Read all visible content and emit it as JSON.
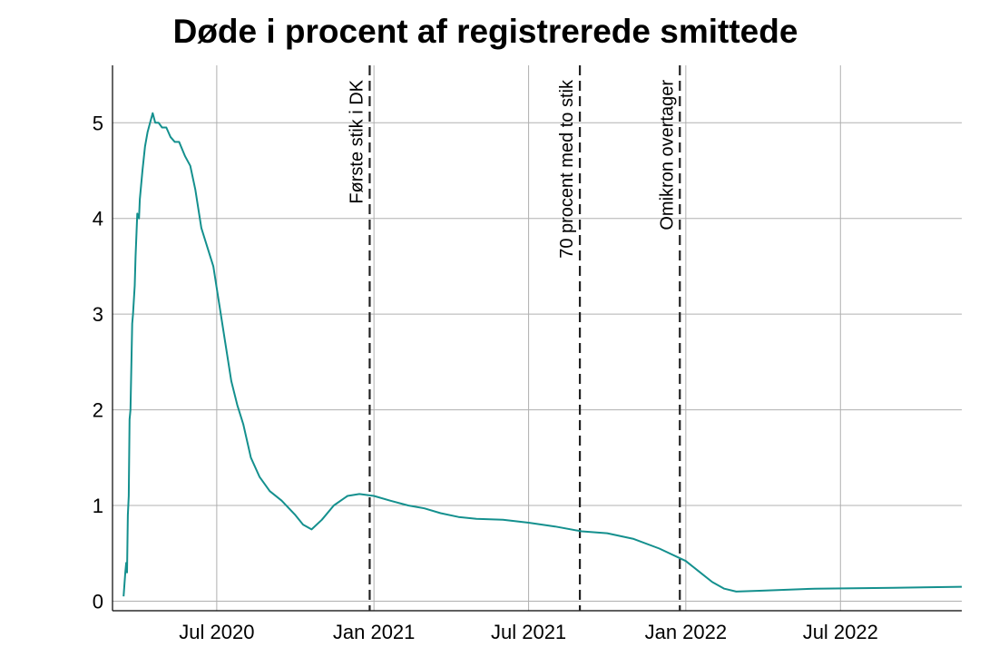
{
  "chart_data": {
    "type": "line",
    "title": "Døde i procent af registrerede smittede",
    "xlabel": "",
    "ylabel": "",
    "x_range": [
      "2020-03-01",
      "2022-11-20"
    ],
    "ylim": [
      -0.1,
      5.6
    ],
    "grid": true,
    "line_color": "#14908E",
    "x_ticks": [
      {
        "date": "2020-07-01",
        "label": "Jul 2020"
      },
      {
        "date": "2021-01-01",
        "label": "Jan 2021"
      },
      {
        "date": "2021-07-01",
        "label": "Jul 2021"
      },
      {
        "date": "2022-01-01",
        "label": "Jan 2022"
      },
      {
        "date": "2022-07-01",
        "label": "Jul 2022"
      }
    ],
    "y_ticks": [
      0,
      1,
      2,
      3,
      4,
      5
    ],
    "annotations": [
      {
        "date": "2020-12-27",
        "label": "Første stik i DK"
      },
      {
        "date": "2021-08-30",
        "label": "70 procent med to stik"
      },
      {
        "date": "2021-12-25",
        "label": "Omikron overtager"
      }
    ],
    "series": [
      {
        "points": [
          [
            "2020-03-14",
            0.05
          ],
          [
            "2020-03-16",
            0.3
          ],
          [
            "2020-03-17",
            0.4
          ],
          [
            "2020-03-18",
            0.3
          ],
          [
            "2020-03-19",
            0.9
          ],
          [
            "2020-03-20",
            1.1
          ],
          [
            "2020-03-21",
            1.9
          ],
          [
            "2020-03-22",
            2.0
          ],
          [
            "2020-03-24",
            2.9
          ],
          [
            "2020-03-25",
            3.0
          ],
          [
            "2020-03-27",
            3.3
          ],
          [
            "2020-03-28",
            3.6
          ],
          [
            "2020-03-30",
            4.05
          ],
          [
            "2020-04-01",
            4.0
          ],
          [
            "2020-04-02",
            4.2
          ],
          [
            "2020-04-05",
            4.5
          ],
          [
            "2020-04-08",
            4.75
          ],
          [
            "2020-04-11",
            4.9
          ],
          [
            "2020-04-14",
            5.0
          ],
          [
            "2020-04-17",
            5.1
          ],
          [
            "2020-04-20",
            5.0
          ],
          [
            "2020-04-24",
            5.0
          ],
          [
            "2020-04-28",
            4.95
          ],
          [
            "2020-05-03",
            4.95
          ],
          [
            "2020-05-08",
            4.85
          ],
          [
            "2020-05-13",
            4.8
          ],
          [
            "2020-05-18",
            4.8
          ],
          [
            "2020-05-25",
            4.65
          ],
          [
            "2020-05-31",
            4.55
          ],
          [
            "2020-06-06",
            4.3
          ],
          [
            "2020-06-13",
            3.9
          ],
          [
            "2020-06-20",
            3.7
          ],
          [
            "2020-06-27",
            3.5
          ],
          [
            "2020-07-04",
            3.1
          ],
          [
            "2020-07-11",
            2.7
          ],
          [
            "2020-07-18",
            2.3
          ],
          [
            "2020-07-25",
            2.05
          ],
          [
            "2020-08-01",
            1.85
          ],
          [
            "2020-08-10",
            1.5
          ],
          [
            "2020-08-20",
            1.3
          ],
          [
            "2020-09-01",
            1.15
          ],
          [
            "2020-09-15",
            1.05
          ],
          [
            "2020-10-01",
            0.9
          ],
          [
            "2020-10-10",
            0.8
          ],
          [
            "2020-10-20",
            0.75
          ],
          [
            "2020-11-01",
            0.85
          ],
          [
            "2020-11-15",
            1.0
          ],
          [
            "2020-12-01",
            1.1
          ],
          [
            "2020-12-15",
            1.12
          ],
          [
            "2021-01-01",
            1.1
          ],
          [
            "2021-01-20",
            1.05
          ],
          [
            "2021-02-10",
            1.0
          ],
          [
            "2021-03-01",
            0.97
          ],
          [
            "2021-03-20",
            0.92
          ],
          [
            "2021-04-10",
            0.88
          ],
          [
            "2021-05-01",
            0.86
          ],
          [
            "2021-06-01",
            0.85
          ],
          [
            "2021-07-01",
            0.82
          ],
          [
            "2021-08-01",
            0.78
          ],
          [
            "2021-09-01",
            0.73
          ],
          [
            "2021-10-01",
            0.71
          ],
          [
            "2021-11-01",
            0.65
          ],
          [
            "2021-12-01",
            0.55
          ],
          [
            "2022-01-01",
            0.42
          ],
          [
            "2022-01-15",
            0.32
          ],
          [
            "2022-02-01",
            0.2
          ],
          [
            "2022-02-15",
            0.13
          ],
          [
            "2022-03-01",
            0.1
          ],
          [
            "2022-04-01",
            0.11
          ],
          [
            "2022-06-01",
            0.13
          ],
          [
            "2022-09-01",
            0.14
          ],
          [
            "2022-11-20",
            0.15
          ]
        ]
      }
    ]
  }
}
